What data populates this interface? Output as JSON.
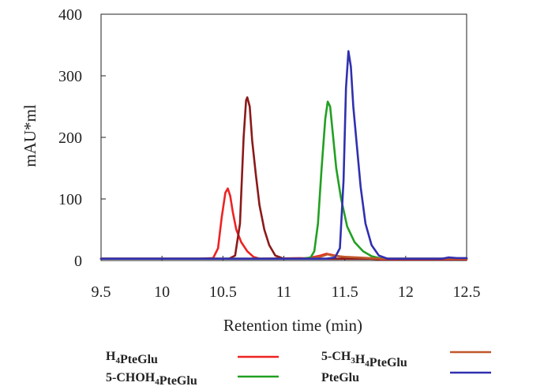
{
  "chart_data": {
    "type": "line",
    "title": "",
    "xlabel": "Retention time (min)",
    "ylabel": "mAU*ml",
    "xlim": [
      9.5,
      12.5
    ],
    "ylim": [
      0,
      400
    ],
    "xticks": [
      9.5,
      10,
      10.5,
      11,
      11.5,
      12,
      12.5
    ],
    "xtick_labels": [
      "9.5",
      "10",
      "10.5",
      "11",
      "11.5",
      "12",
      "12.5"
    ],
    "yticks": [
      0,
      100,
      200,
      300,
      400
    ],
    "ytick_labels": [
      "0",
      "100",
      "200",
      "300",
      "400"
    ],
    "grid": false,
    "legend_placement": "bottom",
    "legend": [
      {
        "parts": [
          [
            "H",
            ""
          ],
          [
            "4",
            "sub"
          ],
          [
            "PteGlu",
            ""
          ]
        ],
        "color": "#ee2222"
      },
      {
        "parts": [
          [
            "5-CHOH",
            ""
          ],
          [
            "4",
            "sub"
          ],
          [
            "PteGlu",
            ""
          ]
        ],
        "color": "#22a022"
      },
      {
        "parts": [
          [
            "5-CH",
            ""
          ],
          [
            "3",
            "sub"
          ],
          [
            "H",
            ""
          ],
          [
            "4",
            "sub"
          ],
          [
            "PteGlu",
            ""
          ]
        ],
        "color": "#c0582a"
      },
      {
        "parts": [
          [
            "PteGlu",
            ""
          ]
        ],
        "color": "#3030b0"
      }
    ],
    "series": [
      {
        "color": "#ee2222",
        "points": [
          [
            9.5,
            3
          ],
          [
            10.3,
            3
          ],
          [
            10.42,
            4
          ],
          [
            10.46,
            20
          ],
          [
            10.49,
            70
          ],
          [
            10.52,
            110
          ],
          [
            10.54,
            117
          ],
          [
            10.56,
            105
          ],
          [
            10.58,
            80
          ],
          [
            10.61,
            50
          ],
          [
            10.65,
            30
          ],
          [
            10.7,
            15
          ],
          [
            10.75,
            6
          ],
          [
            10.8,
            3
          ],
          [
            11.2,
            4
          ],
          [
            11.3,
            8
          ],
          [
            11.35,
            11
          ],
          [
            11.4,
            9
          ],
          [
            11.5,
            5
          ],
          [
            11.6,
            4
          ],
          [
            11.8,
            2
          ],
          [
            12.5,
            2
          ]
        ]
      },
      {
        "color": "#8b1a1a",
        "points": [
          [
            9.5,
            3
          ],
          [
            10.55,
            3
          ],
          [
            10.6,
            8
          ],
          [
            10.64,
            60
          ],
          [
            10.67,
            200
          ],
          [
            10.69,
            260
          ],
          [
            10.7,
            265
          ],
          [
            10.72,
            250
          ],
          [
            10.74,
            195
          ],
          [
            10.77,
            140
          ],
          [
            10.8,
            90
          ],
          [
            10.84,
            50
          ],
          [
            10.88,
            25
          ],
          [
            10.93,
            8
          ],
          [
            11.0,
            3
          ],
          [
            12.5,
            3
          ]
        ]
      },
      {
        "color": "#22a022",
        "points": [
          [
            9.5,
            3
          ],
          [
            11.15,
            3
          ],
          [
            11.22,
            5
          ],
          [
            11.25,
            15
          ],
          [
            11.28,
            60
          ],
          [
            11.31,
            150
          ],
          [
            11.34,
            230
          ],
          [
            11.36,
            258
          ],
          [
            11.38,
            250
          ],
          [
            11.4,
            210
          ],
          [
            11.43,
            150
          ],
          [
            11.47,
            100
          ],
          [
            11.52,
            55
          ],
          [
            11.58,
            30
          ],
          [
            11.65,
            15
          ],
          [
            11.72,
            7
          ],
          [
            11.8,
            3
          ],
          [
            12.5,
            3
          ]
        ]
      },
      {
        "color": "#c0582a",
        "points": [
          [
            9.5,
            3
          ],
          [
            11.2,
            3
          ],
          [
            11.3,
            6
          ],
          [
            11.36,
            10
          ],
          [
            11.4,
            8
          ],
          [
            11.5,
            6
          ],
          [
            11.6,
            5
          ],
          [
            11.8,
            3
          ],
          [
            12.5,
            3
          ]
        ]
      },
      {
        "color": "#3030b0",
        "points": [
          [
            9.5,
            3
          ],
          [
            11.35,
            3
          ],
          [
            11.42,
            5
          ],
          [
            11.46,
            20
          ],
          [
            11.49,
            130
          ],
          [
            11.51,
            280
          ],
          [
            11.53,
            340
          ],
          [
            11.55,
            315
          ],
          [
            11.57,
            250
          ],
          [
            11.6,
            185
          ],
          [
            11.63,
            120
          ],
          [
            11.67,
            60
          ],
          [
            11.72,
            25
          ],
          [
            11.78,
            8
          ],
          [
            11.85,
            3
          ],
          [
            12.3,
            3
          ],
          [
            12.35,
            5
          ],
          [
            12.42,
            4
          ],
          [
            12.5,
            4
          ]
        ]
      }
    ]
  }
}
